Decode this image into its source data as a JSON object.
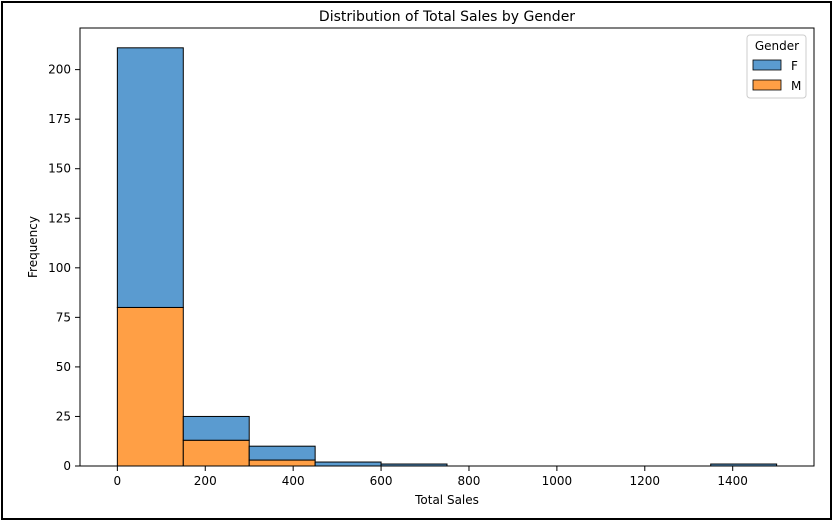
{
  "chart_data": {
    "type": "bar",
    "title": "Distribution of Total Sales by Gender",
    "xlabel": "Total Sales",
    "ylabel": "Frequency",
    "stacked": true,
    "xlim": [
      -85,
      1585
    ],
    "ylim": [
      0,
      221
    ],
    "xticks": [
      0,
      200,
      400,
      600,
      800,
      1000,
      1200,
      1400
    ],
    "yticks": [
      0,
      25,
      50,
      75,
      100,
      125,
      150,
      175,
      200
    ],
    "bin_edges": [
      0,
      150,
      300,
      450,
      600,
      750,
      900,
      1050,
      1200,
      1350,
      1500
    ],
    "series": [
      {
        "name": "M",
        "color": "#ff9f45",
        "values": [
          80,
          13,
          3,
          0,
          0,
          0,
          0,
          0,
          0,
          0
        ]
      },
      {
        "name": "F",
        "color": "#5a9bd0",
        "values": [
          131,
          12,
          7,
          2,
          1,
          0,
          0,
          0,
          0,
          1
        ]
      }
    ],
    "legend": {
      "title": "Gender",
      "placement": "top-right",
      "entries": [
        {
          "label": "F",
          "color": "#5a9bd0"
        },
        {
          "label": "M",
          "color": "#ff9f45"
        }
      ]
    },
    "grid": false
  }
}
